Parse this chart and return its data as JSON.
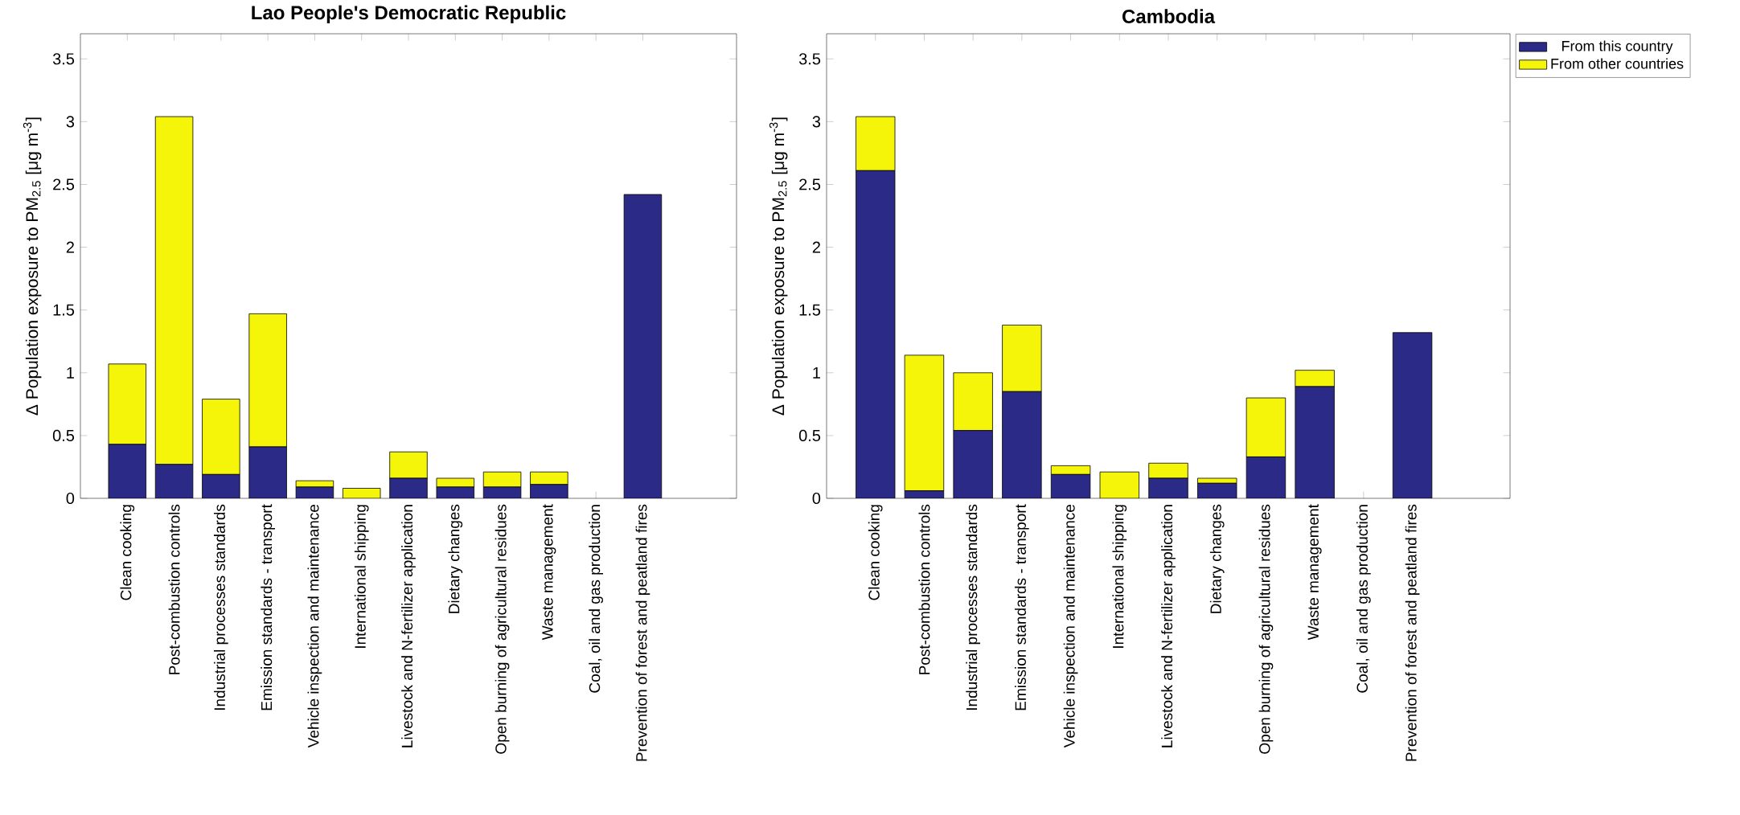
{
  "chart_data": [
    {
      "type": "bar",
      "title": "Lao People's Democratic Republic",
      "ylabel": "Δ Population exposure to PM$_{2.5}$ [μg m$^{-3}$]",
      "stacked": true,
      "categories": [
        "Clean cooking",
        "Post-combustion controls",
        "Industrial processes standards",
        "Emission standards - transport",
        "Vehicle inspection and maintenance",
        "International shipping",
        "Livestock and N-fertilizer application",
        "Dietary changes",
        "Open burning of agricultural residues",
        "Waste management",
        "Coal, oil and gas production",
        "Prevention of forest and peatland fires"
      ],
      "series": [
        {
          "color": "#2b2a87",
          "values": [
            0.43,
            0.27,
            0.19,
            0.41,
            0.09,
            0,
            0.16,
            0.09,
            0.09,
            0.11,
            0,
            2.42
          ]
        },
        {
          "color": "#f5f50a",
          "values": [
            0.64,
            2.77,
            0.6,
            1.06,
            0.05,
            0.08,
            0.21,
            0.07,
            0.12,
            0.1,
            0,
            0
          ]
        }
      ],
      "ylim": [
        0,
        3.7
      ],
      "yticks": [
        0,
        0.5,
        1,
        1.5,
        2,
        2.5,
        3,
        3.5
      ]
    },
    {
      "type": "bar",
      "title": "Cambodia",
      "ylabel": "Δ Population exposure to PM$_{2.5}$ [μg m$^{-3}$]",
      "stacked": true,
      "legend": "top right",
      "categories": [
        "Clean cooking",
        "Post-combustion controls",
        "Industrial processes standards",
        "Emission standards - transport",
        "Vehicle inspection and maintenance",
        "International shipping",
        "Livestock and N-fertilizer application",
        "Dietary changes",
        "Open burning of agricultural residues",
        "Waste management",
        "Coal, oil and gas production",
        "Prevention of forest and peatland fires"
      ],
      "series": [
        {
          "name": "From this country",
          "color": "#2b2a87",
          "values": [
            2.61,
            0.06,
            0.54,
            0.85,
            0.19,
            0,
            0.16,
            0.12,
            0.33,
            0.89,
            0,
            1.32
          ]
        },
        {
          "name": "From other countries",
          "color": "#f5f50a",
          "values": [
            0.43,
            1.08,
            0.46,
            0.53,
            0.07,
            0.21,
            0.12,
            0.04,
            0.47,
            0.13,
            0,
            0
          ]
        }
      ],
      "ylim": [
        0,
        3.7
      ],
      "yticks": [
        0,
        0.5,
        1,
        1.5,
        2,
        2.5,
        3,
        3.5
      ]
    }
  ]
}
